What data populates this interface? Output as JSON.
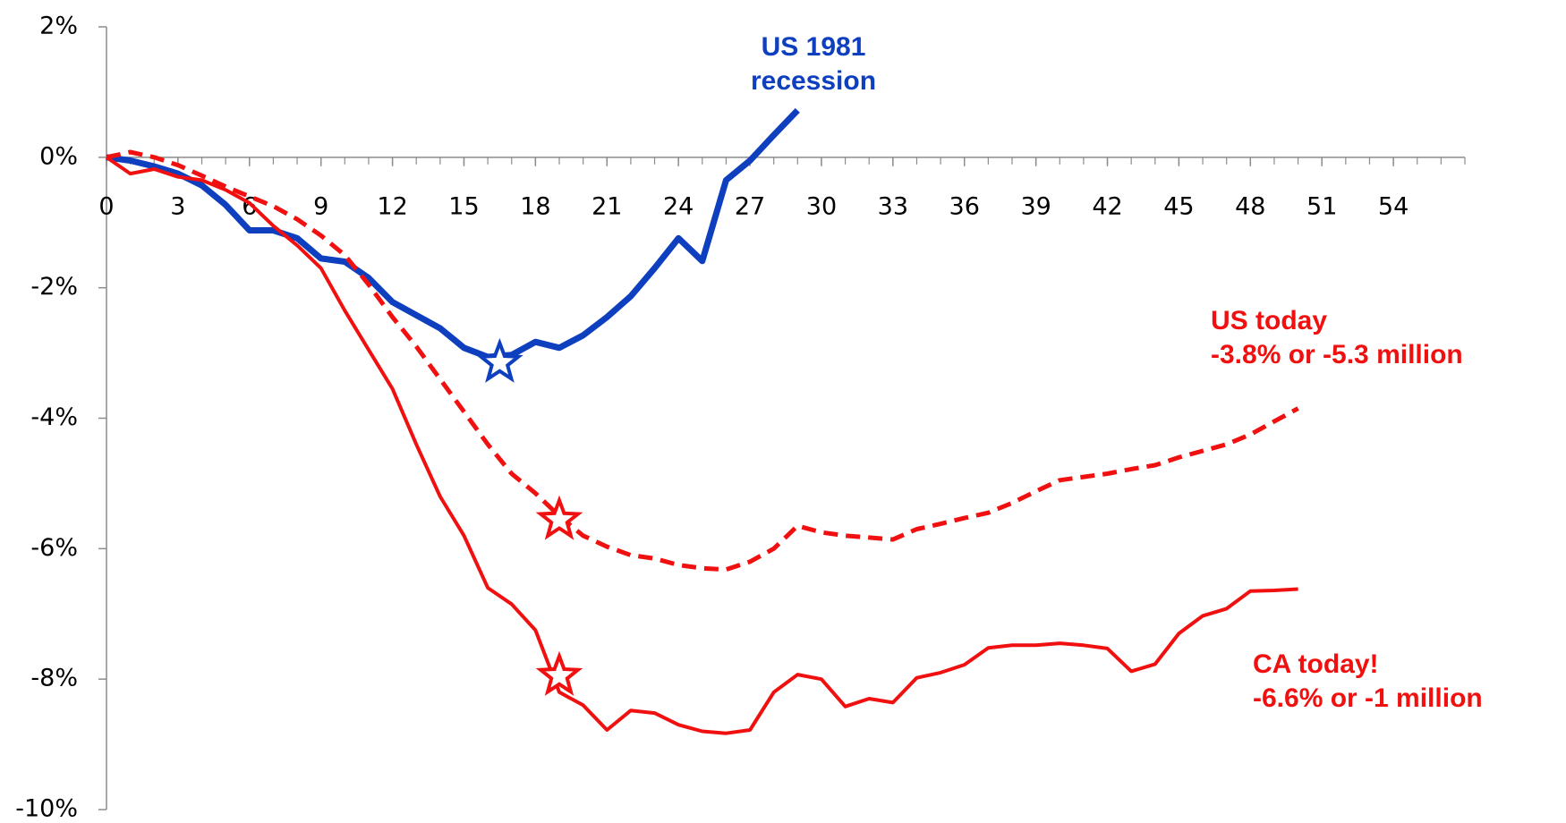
{
  "chart_data": {
    "type": "line",
    "xlim": [
      0,
      57
    ],
    "xticks": [
      0,
      3,
      6,
      9,
      12,
      15,
      18,
      21,
      24,
      27,
      30,
      33,
      36,
      39,
      42,
      45,
      48,
      51,
      54
    ],
    "ylim": [
      -10,
      2
    ],
    "yticks": [
      {
        "value": 2,
        "label": "2%"
      },
      {
        "value": 0,
        "label": "0%"
      },
      {
        "value": -2,
        "label": "-2%"
      },
      {
        "value": -4,
        "label": "-4%"
      },
      {
        "value": -6,
        "label": "-6%"
      },
      {
        "value": -8,
        "label": "-8%"
      },
      {
        "value": -10,
        "label": "-10%"
      }
    ],
    "series": [
      {
        "color": "#0d3fbf",
        "style": "solid",
        "x": [
          0,
          1,
          2,
          3,
          4,
          5,
          6,
          7,
          8,
          9,
          10,
          11,
          12,
          13,
          14,
          15,
          16,
          17,
          18,
          19,
          20,
          21,
          22,
          23,
          24,
          25,
          26,
          27,
          28,
          29
        ],
        "values": [
          0,
          -0.05,
          -0.14,
          -0.25,
          -0.43,
          -0.73,
          -1.12,
          -1.12,
          -1.24,
          -1.55,
          -1.6,
          -1.85,
          -2.22,
          -2.42,
          -2.62,
          -2.92,
          -3.06,
          -3.03,
          -2.83,
          -2.92,
          -2.73,
          -2.45,
          -2.13,
          -1.7,
          -1.24,
          -1.59,
          -0.35,
          -0.05,
          0.34,
          0.72
        ],
        "star": {
          "x": 16.5,
          "y": -3.15
        }
      },
      {
        "color": "#f01010",
        "style": "dashed",
        "x": [
          0,
          1,
          2,
          3,
          4,
          5,
          6,
          7,
          8,
          9,
          10,
          11,
          12,
          13,
          14,
          15,
          16,
          17,
          18,
          19,
          20,
          21,
          22,
          23,
          24,
          25,
          26,
          27,
          28,
          29,
          30,
          31,
          32,
          33,
          34,
          35,
          36,
          37,
          38,
          39,
          40,
          41,
          42,
          43,
          44,
          45,
          46,
          47,
          48,
          49,
          50
        ],
        "values": [
          0,
          0.08,
          0,
          -0.12,
          -0.28,
          -0.45,
          -0.6,
          -0.75,
          -0.95,
          -1.2,
          -1.5,
          -1.95,
          -2.45,
          -2.9,
          -3.4,
          -3.9,
          -4.4,
          -4.85,
          -5.15,
          -5.5,
          -5.8,
          -5.97,
          -6.1,
          -6.15,
          -6.25,
          -6.3,
          -6.32,
          -6.2,
          -6.0,
          -5.65,
          -5.75,
          -5.8,
          -5.83,
          -5.86,
          -5.7,
          -5.62,
          -5.53,
          -5.45,
          -5.3,
          -5.12,
          -4.95,
          -4.9,
          -4.85,
          -4.78,
          -4.72,
          -4.6,
          -4.5,
          -4.4,
          -4.25,
          -4.05,
          -3.85
        ],
        "star": {
          "x": 19,
          "y": -5.56
        }
      },
      {
        "color": "#f01010",
        "style": "solid",
        "x": [
          0,
          1,
          2,
          3,
          4,
          5,
          6,
          7,
          8,
          9,
          10,
          11,
          12,
          13,
          14,
          15,
          16,
          17,
          18,
          19,
          20,
          21,
          22,
          23,
          24,
          25,
          26,
          27,
          28,
          29,
          30,
          31,
          32,
          33,
          34,
          35,
          36,
          37,
          38,
          39,
          40,
          41,
          42,
          43,
          44,
          45,
          46,
          47,
          48,
          49,
          50
        ],
        "values": [
          0,
          -0.25,
          -0.18,
          -0.3,
          -0.35,
          -0.5,
          -0.7,
          -1.05,
          -1.35,
          -1.7,
          -2.35,
          -2.95,
          -3.55,
          -4.4,
          -5.2,
          -5.8,
          -6.6,
          -6.85,
          -7.25,
          -8.2,
          -8.4,
          -8.78,
          -8.48,
          -8.52,
          -8.7,
          -8.8,
          -8.83,
          -8.78,
          -8.2,
          -7.93,
          -8.0,
          -8.42,
          -8.3,
          -8.36,
          -7.98,
          -7.9,
          -7.78,
          -7.52,
          -7.48,
          -7.48,
          -7.45,
          -7.48,
          -7.53,
          -7.88,
          -7.77,
          -7.3,
          -7.03,
          -6.92,
          -6.65,
          -6.64,
          -6.62
        ],
        "star": {
          "x": 19,
          "y": -7.95
        }
      }
    ],
    "annotations": [
      {
        "text": [
          "US 1981",
          "recession"
        ],
        "color": "#0d3fbf"
      },
      {
        "text": [
          "US today",
          "-3.8% or -5.3 million"
        ],
        "color": "#f01010"
      },
      {
        "text": [
          "CA today!",
          "-6.6% or -1 million"
        ],
        "color": "#f01010"
      }
    ]
  }
}
